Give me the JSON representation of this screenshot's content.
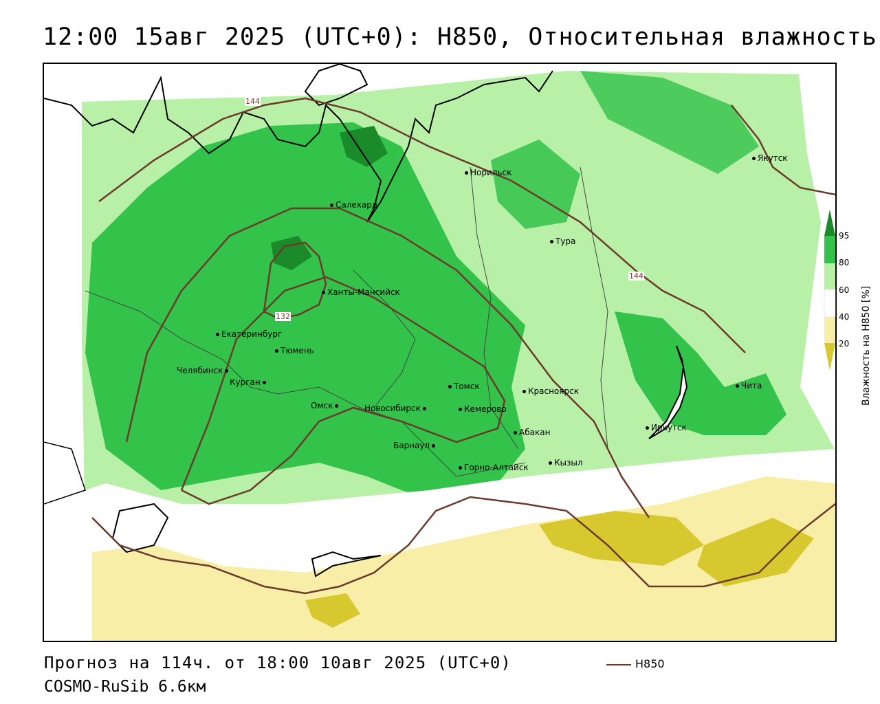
{
  "title": "12:00 15авг 2025 (UTC+0): H850, Относительная влажность",
  "footer": {
    "forecast": "Прогноз на 114ч. от 18:00 10авг 2025 (UTC+0)",
    "model": "COSMO-RuSib 6.6км",
    "contour_legend": "H850"
  },
  "colorbar": {
    "title": "Влажность на H850 [%]",
    "ticks": [
      "95",
      "80",
      "60",
      "40",
      "20"
    ],
    "colors": {
      "c95": "#1a8a2a",
      "c80": "#33c24a",
      "c60": "#b8f0a8",
      "c40": "#ffffff",
      "c20": "#f8eea8",
      "c10": "#d8c830"
    }
  },
  "contour_labels": [
    "144",
    "144",
    "132"
  ],
  "cities": [
    "Якутск",
    "Норильск",
    "Салехард",
    "Тура",
    "Ханты-Мансийск",
    "Екатеринбург",
    "Тюмень",
    "Челябинск",
    "Курган",
    "Омск",
    "Новосибирск",
    "Томск",
    "Кемерово",
    "Красноярск",
    "Абакан",
    "Барнаул",
    "Горно-Алтайск",
    "Кызыл",
    "Иркутск",
    "Чита"
  ],
  "colors": {
    "contour": "#6b3a2a",
    "coast": "#000000",
    "border": "#444444"
  }
}
